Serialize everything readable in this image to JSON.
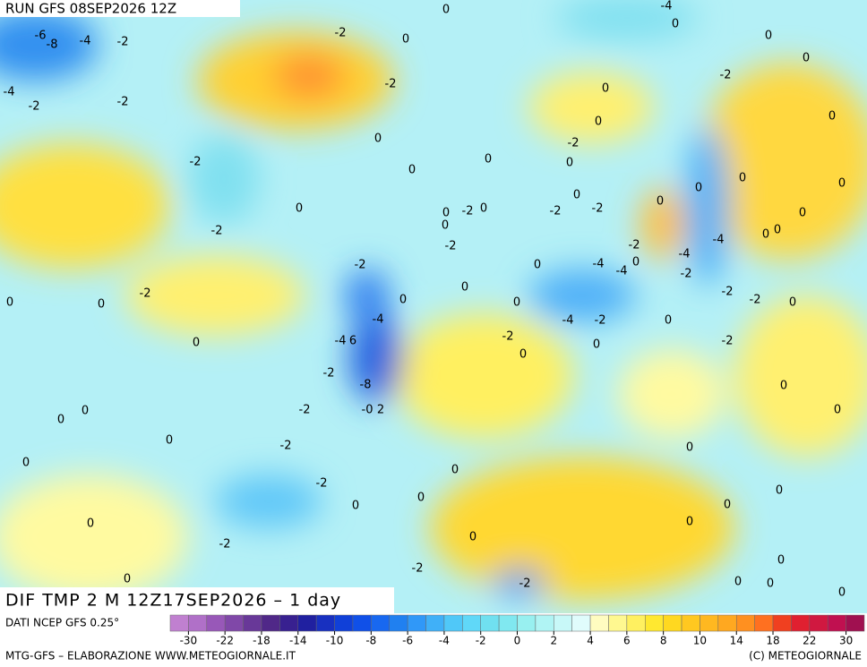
{
  "header": {
    "run": "RUN GFS 08SEP2026 12Z",
    "title": "DIF TMP 2 M 12Z17SEP2026 – 1 day"
  },
  "footer": {
    "source": "DATI NCEP GFS 0.25°",
    "credits": "MTG-GFS – ELABORAZIONE WWW.METEOGIORNALE.IT",
    "copyright": "(C) METEOGIORNALE"
  },
  "colorbar": {
    "colors": [
      "#c080d0",
      "#b070c8",
      "#9858b8",
      "#8048a8",
      "#683898",
      "#502888",
      "#382090",
      "#2020a0",
      "#1830c0",
      "#1040d8",
      "#1050e8",
      "#1868f0",
      "#2080f0",
      "#3098f8",
      "#40b0f8",
      "#50c8f8",
      "#60d8f8",
      "#70e0f0",
      "#80e8f0",
      "#98f0f0",
      "#b0f4f4",
      "#c8f8f8",
      "#e0fcfc",
      "#fffcc0",
      "#fff890",
      "#fff060",
      "#ffe830",
      "#ffd820",
      "#ffc820",
      "#ffb820",
      "#ffa820",
      "#ff9020",
      "#ff7020",
      "#f04020",
      "#e02030",
      "#d01840",
      "#c01050",
      "#a01050"
    ],
    "ticks": [
      -30,
      -22,
      -18,
      -14,
      -10,
      -8,
      -6,
      -4,
      -2,
      0,
      2,
      4,
      6,
      8,
      10,
      14,
      18,
      22,
      30
    ]
  },
  "map": {
    "contour_labels": [
      "-6",
      "-8",
      "-4",
      "-2",
      "-4",
      "-2",
      "-2",
      "-2",
      "0",
      "0",
      "-2",
      "0",
      "-2",
      "0",
      "0",
      "-2",
      "-2",
      "0",
      "0",
      "0",
      "-2",
      "0",
      "-4",
      "-4",
      "6",
      "-2",
      "-8",
      "-0",
      "2",
      "-2",
      "0",
      "0",
      "0",
      "-2",
      "0",
      "-2",
      "0",
      "0",
      "0",
      "0",
      "0",
      "-2",
      "-2",
      "0",
      "-2",
      "-4",
      "0",
      "0",
      "0",
      "-2",
      "0",
      "0",
      "0",
      "-2",
      "0",
      "0",
      "0",
      "0",
      "-2",
      "0",
      "0",
      "-2",
      "-2",
      "-2",
      "0",
      "0",
      "0",
      "0",
      "0",
      "0",
      "0",
      "-4",
      "-2",
      "-4",
      "-4",
      "-4",
      "0",
      "0",
      "0",
      "0",
      "-2",
      "-2",
      "-2",
      "0",
      "-4",
      "-2",
      "0",
      "-2",
      "0",
      "0",
      "-2",
      "0",
      "0",
      "0",
      "0",
      "0",
      "0",
      "0",
      "0",
      "0",
      "0"
    ]
  }
}
